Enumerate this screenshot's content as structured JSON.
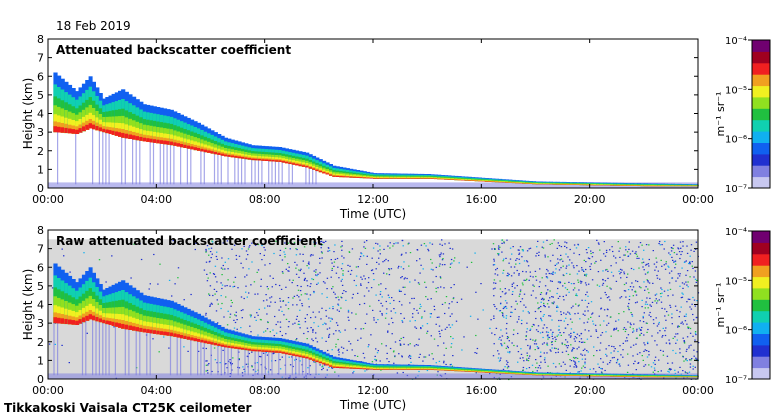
{
  "header": {
    "date": "18 Feb 2019"
  },
  "footer": {
    "instrument": "Tikkakoski Vaisala CT25K ceilometer"
  },
  "colors": {
    "colormap": [
      "#c8c8f0",
      "#8080e0",
      "#2030d0",
      "#1060f0",
      "#10b0f0",
      "#10d0b0",
      "#20c040",
      "#90e020",
      "#f0f020",
      "#f0a020",
      "#f02020",
      "#a00020",
      "#700070"
    ],
    "background_noise": "#d9d9d9",
    "frame": "#000000"
  },
  "chart_data": [
    {
      "type": "heatmap",
      "title": "Attenuated backscatter coefficient",
      "xlabel": "Time (UTC)",
      "ylabel": "Height (km)",
      "x_ticks": [
        "00:00",
        "04:00",
        "08:00",
        "12:00",
        "16:00",
        "20:00",
        "00:00"
      ],
      "x_range_hours": [
        0,
        24
      ],
      "y_ticks": [
        "0",
        "1",
        "2",
        "3",
        "4",
        "5",
        "6",
        "7",
        "8"
      ],
      "ylim": [
        0,
        8
      ],
      "colorbar": {
        "label": "m⁻¹ sr⁻¹",
        "tick_labels": [
          "10⁻⁷",
          "10⁻⁶",
          "10⁻⁵",
          "10⁻⁴"
        ],
        "scale": "log",
        "range": [
          1e-07,
          0.0001
        ]
      },
      "cloud_base_km": [
        {
          "hour": 0.2,
          "base": 3.0,
          "top": 6.2
        },
        {
          "hour": 1.0,
          "base": 2.9,
          "top": 5.2
        },
        {
          "hour": 1.5,
          "base": 3.2,
          "top": 6.0
        },
        {
          "hour": 2.0,
          "base": 3.0,
          "top": 4.8
        },
        {
          "hour": 2.7,
          "base": 2.7,
          "top": 5.3
        },
        {
          "hour": 3.5,
          "base": 2.5,
          "top": 4.5
        },
        {
          "hour": 4.5,
          "base": 2.3,
          "top": 4.2
        },
        {
          "hour": 5.5,
          "base": 2.0,
          "top": 3.5
        },
        {
          "hour": 6.5,
          "base": 1.7,
          "top": 2.7
        },
        {
          "hour": 7.5,
          "base": 1.5,
          "top": 2.3
        },
        {
          "hour": 8.5,
          "base": 1.4,
          "top": 2.2
        },
        {
          "hour": 9.5,
          "base": 1.1,
          "top": 1.9
        },
        {
          "hour": 10.5,
          "base": 0.6,
          "top": 1.2
        },
        {
          "hour": 12.0,
          "base": 0.5,
          "top": 0.8
        },
        {
          "hour": 14.0,
          "base": 0.5,
          "top": 0.75
        },
        {
          "hour": 16.0,
          "base": 0.35,
          "top": 0.55
        },
        {
          "hour": 18.0,
          "base": 0.2,
          "top": 0.35
        },
        {
          "hour": 20.0,
          "base": 0.15,
          "top": 0.3
        },
        {
          "hour": 22.0,
          "base": 0.1,
          "top": 0.25
        },
        {
          "hour": 24.0,
          "base": 0.1,
          "top": 0.2
        }
      ]
    },
    {
      "type": "heatmap",
      "title": "Raw attenuated backscatter coefficient",
      "xlabel": "Time (UTC)",
      "ylabel": "Height (km)",
      "x_ticks": [
        "00:00",
        "04:00",
        "08:00",
        "12:00",
        "16:00",
        "20:00",
        "00:00"
      ],
      "x_range_hours": [
        0,
        24
      ],
      "y_ticks": [
        "0",
        "1",
        "2",
        "3",
        "4",
        "5",
        "6",
        "7",
        "8"
      ],
      "ylim": [
        0,
        8
      ],
      "colorbar": {
        "label": "m⁻¹ sr⁻¹",
        "tick_labels": [
          "10⁻⁷",
          "10⁻⁶",
          "10⁻⁵",
          "10⁻⁴"
        ],
        "scale": "log",
        "range": [
          1e-07,
          0.0001
        ]
      },
      "noise_top_km": 7.5,
      "noise_segments_hours": [
        {
          "start": 0.0,
          "end": 5.8,
          "density": 0.05
        },
        {
          "start": 5.8,
          "end": 11.0,
          "density": 0.55
        },
        {
          "start": 11.0,
          "end": 15.0,
          "density": 0.45
        },
        {
          "start": 15.0,
          "end": 16.4,
          "density": 0.08
        },
        {
          "start": 16.4,
          "end": 24.0,
          "density": 0.75
        }
      ]
    }
  ]
}
